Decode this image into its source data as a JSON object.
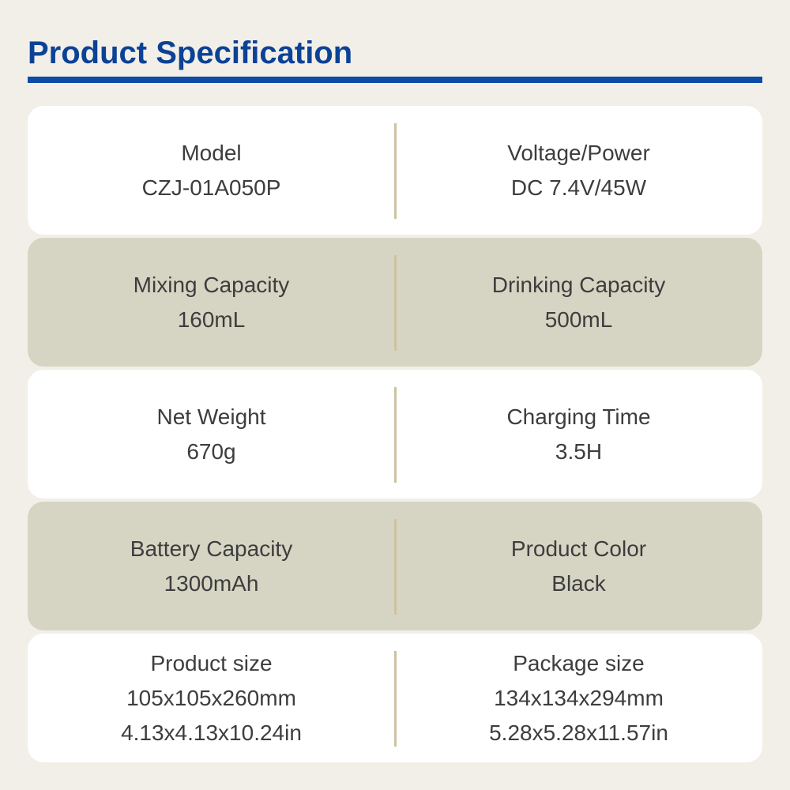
{
  "page": {
    "title": "Product Specification"
  },
  "colors": {
    "bg": "#f2efe9",
    "accent": "#0b4296",
    "rule": "#0d4ba4",
    "card-white": "#ffffff",
    "card-beige": "#d6d5c4",
    "divider": "#cdc2a0",
    "text": "#3d3d3d"
  },
  "table": {
    "rows": [
      {
        "variant": "white",
        "cells": [
          {
            "label": "Model",
            "values": [
              "CZJ-01A050P"
            ]
          },
          {
            "label": "Voltage/Power",
            "values": [
              "DC 7.4V/45W"
            ]
          }
        ]
      },
      {
        "variant": "beige",
        "cells": [
          {
            "label": "Mixing Capacity",
            "values": [
              "160mL"
            ]
          },
          {
            "label": "Drinking Capacity",
            "values": [
              "500mL"
            ]
          }
        ]
      },
      {
        "variant": "white",
        "cells": [
          {
            "label": "Net Weight",
            "values": [
              "670g"
            ]
          },
          {
            "label": "Charging Time",
            "values": [
              "3.5H"
            ]
          }
        ]
      },
      {
        "variant": "beige",
        "cells": [
          {
            "label": "Battery Capacity",
            "values": [
              "1300mAh"
            ]
          },
          {
            "label": "Product Color",
            "values": [
              "Black"
            ]
          }
        ]
      },
      {
        "variant": "white",
        "cells": [
          {
            "label": "Product size",
            "values": [
              "105x105x260mm",
              "4.13x4.13x10.24in"
            ]
          },
          {
            "label": "Package size",
            "values": [
              "134x134x294mm",
              "5.28x5.28x11.57in"
            ]
          }
        ]
      }
    ]
  }
}
